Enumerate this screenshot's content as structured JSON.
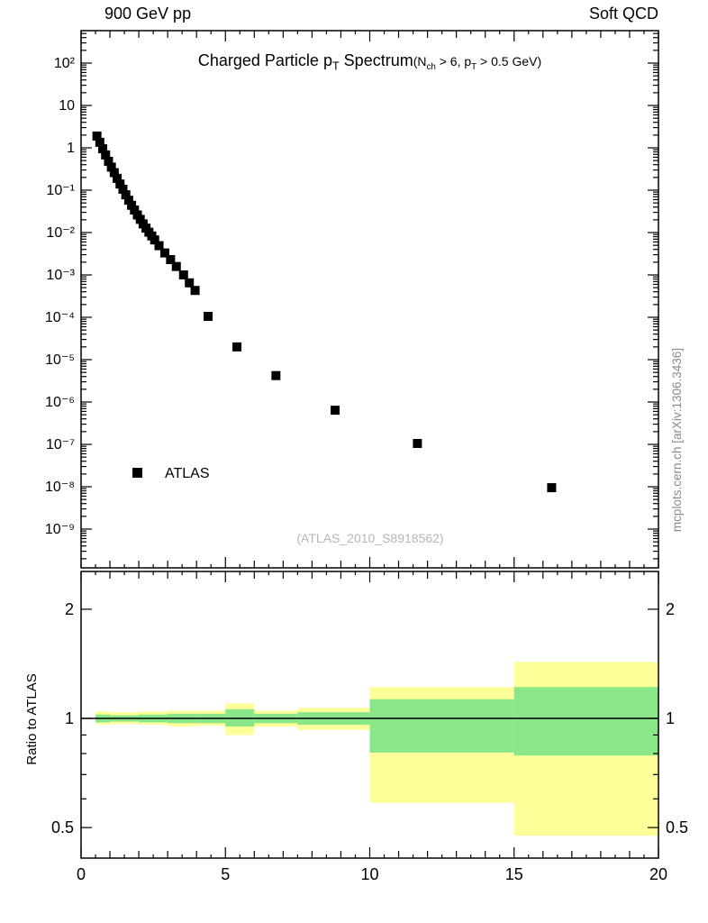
{
  "header": {
    "left": "900 GeV pp",
    "right": "Soft QCD"
  },
  "side_note": "mcplots.cern.ch [arXiv:1306.3436]",
  "colors": {
    "marker": "#000000",
    "band_outer_yellow": "#ffff99",
    "band_inner_green": "#89e789",
    "watermark_gray": "#b5b5b5",
    "side_note_gray": "#8a8a8a",
    "frame": "#000000"
  },
  "chart_data": [
    {
      "type": "scatter",
      "panel": "spectrum",
      "title_parts": [
        {
          "text": "Charged Particle p"
        },
        {
          "text": "T",
          "style": "sub"
        },
        {
          "text": " Spectrum"
        }
      ],
      "condition_parts": [
        {
          "text": "(N"
        },
        {
          "text": "ch",
          "style": "sub"
        },
        {
          "text": " > 6, p"
        },
        {
          "text": "T",
          "style": "sub"
        },
        {
          "text": " > 0.5 GeV)"
        }
      ],
      "legend_label": "ATLAS",
      "watermark": "(ATLAS_2010_S8918562)",
      "series": [
        {
          "name": "ATLAS",
          "marker": "filled-square",
          "color": "#000000"
        }
      ],
      "x": [
        0.55,
        0.65,
        0.75,
        0.85,
        0.95,
        1.05,
        1.15,
        1.25,
        1.35,
        1.45,
        1.55,
        1.65,
        1.75,
        1.85,
        1.95,
        2.05,
        2.15,
        2.25,
        2.35,
        2.45,
        2.55,
        2.7,
        2.9,
        3.1,
        3.3,
        3.55,
        3.75,
        3.95,
        4.4,
        5.4,
        6.75,
        8.8,
        11.65,
        16.3
      ],
      "y": [
        1.9,
        1.35,
        0.95,
        0.68,
        0.48,
        0.35,
        0.26,
        0.19,
        0.14,
        0.105,
        0.078,
        0.058,
        0.044,
        0.034,
        0.026,
        0.0205,
        0.016,
        0.0127,
        0.0102,
        0.0083,
        0.0067,
        0.0049,
        0.0033,
        0.0023,
        0.00158,
        0.001,
        0.00065,
        0.00043,
        0.000105,
        2e-05,
        4.2e-06,
        6.4e-07,
        1.05e-07,
        9.5e-09
      ],
      "xlim": [
        0,
        20
      ],
      "ylog": true,
      "ylim": [
        1.2e-10,
        580.0
      ],
      "yticks": [
        {
          "v": 100,
          "label": "10²"
        },
        {
          "v": 10,
          "label": "10"
        },
        {
          "v": 1,
          "label": "1"
        },
        {
          "v": 0.1,
          "label": "10⁻¹"
        },
        {
          "v": 0.01,
          "label": "10⁻²"
        },
        {
          "v": 0.001,
          "label": "10⁻³"
        },
        {
          "v": 0.0001,
          "label": "10⁻⁴"
        },
        {
          "v": 1e-05,
          "label": "10⁻⁵"
        },
        {
          "v": 1e-06,
          "label": "10⁻⁶"
        },
        {
          "v": 1e-07,
          "label": "10⁻⁷"
        },
        {
          "v": 1e-08,
          "label": "10⁻⁸"
        },
        {
          "v": 1e-09,
          "label": "10⁻⁹"
        }
      ]
    },
    {
      "type": "area",
      "panel": "ratio",
      "ylabel": "Ratio to ATLAS",
      "ylog": true,
      "ylim": [
        0.41,
        2.54
      ],
      "reference_line_y": 1,
      "yticks": [
        {
          "v": 0.5,
          "label": "0.5"
        },
        {
          "v": 1,
          "label": "1"
        },
        {
          "v": 2,
          "label": "2"
        }
      ],
      "xticks": [
        {
          "v": 0,
          "label": "0"
        },
        {
          "v": 5,
          "label": "5"
        },
        {
          "v": 10,
          "label": "10"
        },
        {
          "v": 15,
          "label": "15"
        },
        {
          "v": 20,
          "label": "20"
        }
      ],
      "bands": {
        "yellow": [
          [
            0.5,
            1.0,
            0.96,
            1.045
          ],
          [
            1.0,
            2.0,
            0.965,
            1.04
          ],
          [
            2.0,
            3.0,
            0.96,
            1.045
          ],
          [
            3.0,
            4.0,
            0.95,
            1.05
          ],
          [
            4.0,
            5.0,
            0.955,
            1.05
          ],
          [
            5.0,
            6.0,
            0.9,
            1.1
          ],
          [
            6.0,
            7.5,
            0.95,
            1.05
          ],
          [
            7.5,
            10.0,
            0.93,
            1.07
          ],
          [
            10.0,
            15.0,
            0.585,
            1.22
          ],
          [
            15.0,
            20.0,
            0.475,
            1.43
          ]
        ],
        "green": [
          [
            0.5,
            1.0,
            0.975,
            1.025
          ],
          [
            1.0,
            2.0,
            0.98,
            1.02
          ],
          [
            2.0,
            3.0,
            0.975,
            1.025
          ],
          [
            3.0,
            4.0,
            0.97,
            1.03
          ],
          [
            4.0,
            5.0,
            0.97,
            1.03
          ],
          [
            5.0,
            6.0,
            0.95,
            1.06
          ],
          [
            6.0,
            7.5,
            0.97,
            1.03
          ],
          [
            7.5,
            10.0,
            0.96,
            1.04
          ],
          [
            10.0,
            15.0,
            0.805,
            1.13
          ],
          [
            15.0,
            20.0,
            0.79,
            1.22
          ]
        ]
      }
    }
  ]
}
